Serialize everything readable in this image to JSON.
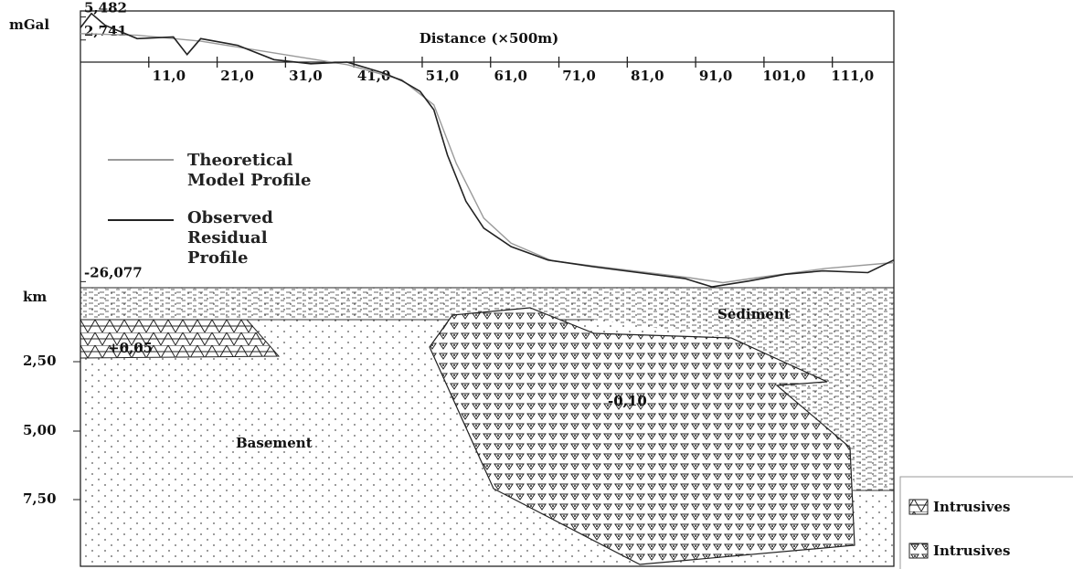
{
  "chart_data": {
    "type": "line",
    "y_label": "mGal",
    "x_label": "Distance (×500m)",
    "xlim": [
      1,
      120
    ],
    "ylim": [
      -26.8,
      6.2
    ],
    "xticks": [
      {
        "value": 11,
        "label": "11,0"
      },
      {
        "value": 21,
        "label": "21,0"
      },
      {
        "value": 31,
        "label": "31,0"
      },
      {
        "value": 41,
        "label": "41,0"
      },
      {
        "value": 51,
        "label": "51,0"
      },
      {
        "value": 61,
        "label": "61,0"
      },
      {
        "value": 71,
        "label": "71,0"
      },
      {
        "value": 81,
        "label": "81,0"
      },
      {
        "value": 91,
        "label": "91,0"
      },
      {
        "value": 101,
        "label": "101,0"
      },
      {
        "value": 111,
        "label": "111,0"
      }
    ],
    "yticks": [
      {
        "value": 5.482,
        "label": "5,482"
      },
      {
        "value": 2.741,
        "label": "2,741"
      },
      {
        "value": -26.077,
        "label": "-26,077"
      }
    ],
    "series": [
      {
        "name": "Theoretical Model Profile",
        "color": "#9a9a9a",
        "x": [
          1,
          9.3,
          18.6,
          29.3,
          40,
          48,
          52.7,
          56,
          60,
          64,
          70,
          80,
          90,
          95,
          100,
          110,
          120
        ],
        "values": [
          3.5,
          3.3,
          2.6,
          1.2,
          -0.2,
          -2.0,
          -5.0,
          -12,
          -18.5,
          -21.5,
          -23.6,
          -24.6,
          -25.6,
          -26.2,
          -25.6,
          -24.5,
          -23.8
        ]
      },
      {
        "name": "Observed Residual Profile",
        "color": "#222222",
        "x": [
          1,
          2.6,
          4.6,
          9.3,
          14.6,
          16.6,
          18.6,
          24,
          29.3,
          34.7,
          40,
          45.3,
          48,
          50.7,
          52.7,
          54.7,
          57.4,
          60,
          64,
          69.4,
          76,
          82.7,
          89.4,
          93.4,
          98.8,
          104.1,
          109.6,
          116.2,
          120
        ],
        "values": [
          4.2,
          5.9,
          4.5,
          2.9,
          3.1,
          1.0,
          2.9,
          2.1,
          0.4,
          -0.1,
          0.1,
          -1.2,
          -2.1,
          -3.4,
          -5.6,
          -11.0,
          -16.5,
          -19.7,
          -21.9,
          -23.5,
          -24.3,
          -25.0,
          -25.7,
          -26.7,
          -26.0,
          -25.2,
          -24.8,
          -25.0,
          -23.5
        ]
      }
    ]
  },
  "section": {
    "depth_unit": "km",
    "depth_ticks": [
      "2,50",
      "5,00",
      "7,50"
    ],
    "labels": {
      "sediment": "Sediment",
      "upper_body": "+0,05",
      "lower_body": "-0,10",
      "basement": "Basement"
    },
    "legend": [
      "Intrusives",
      "Intrusives"
    ]
  }
}
